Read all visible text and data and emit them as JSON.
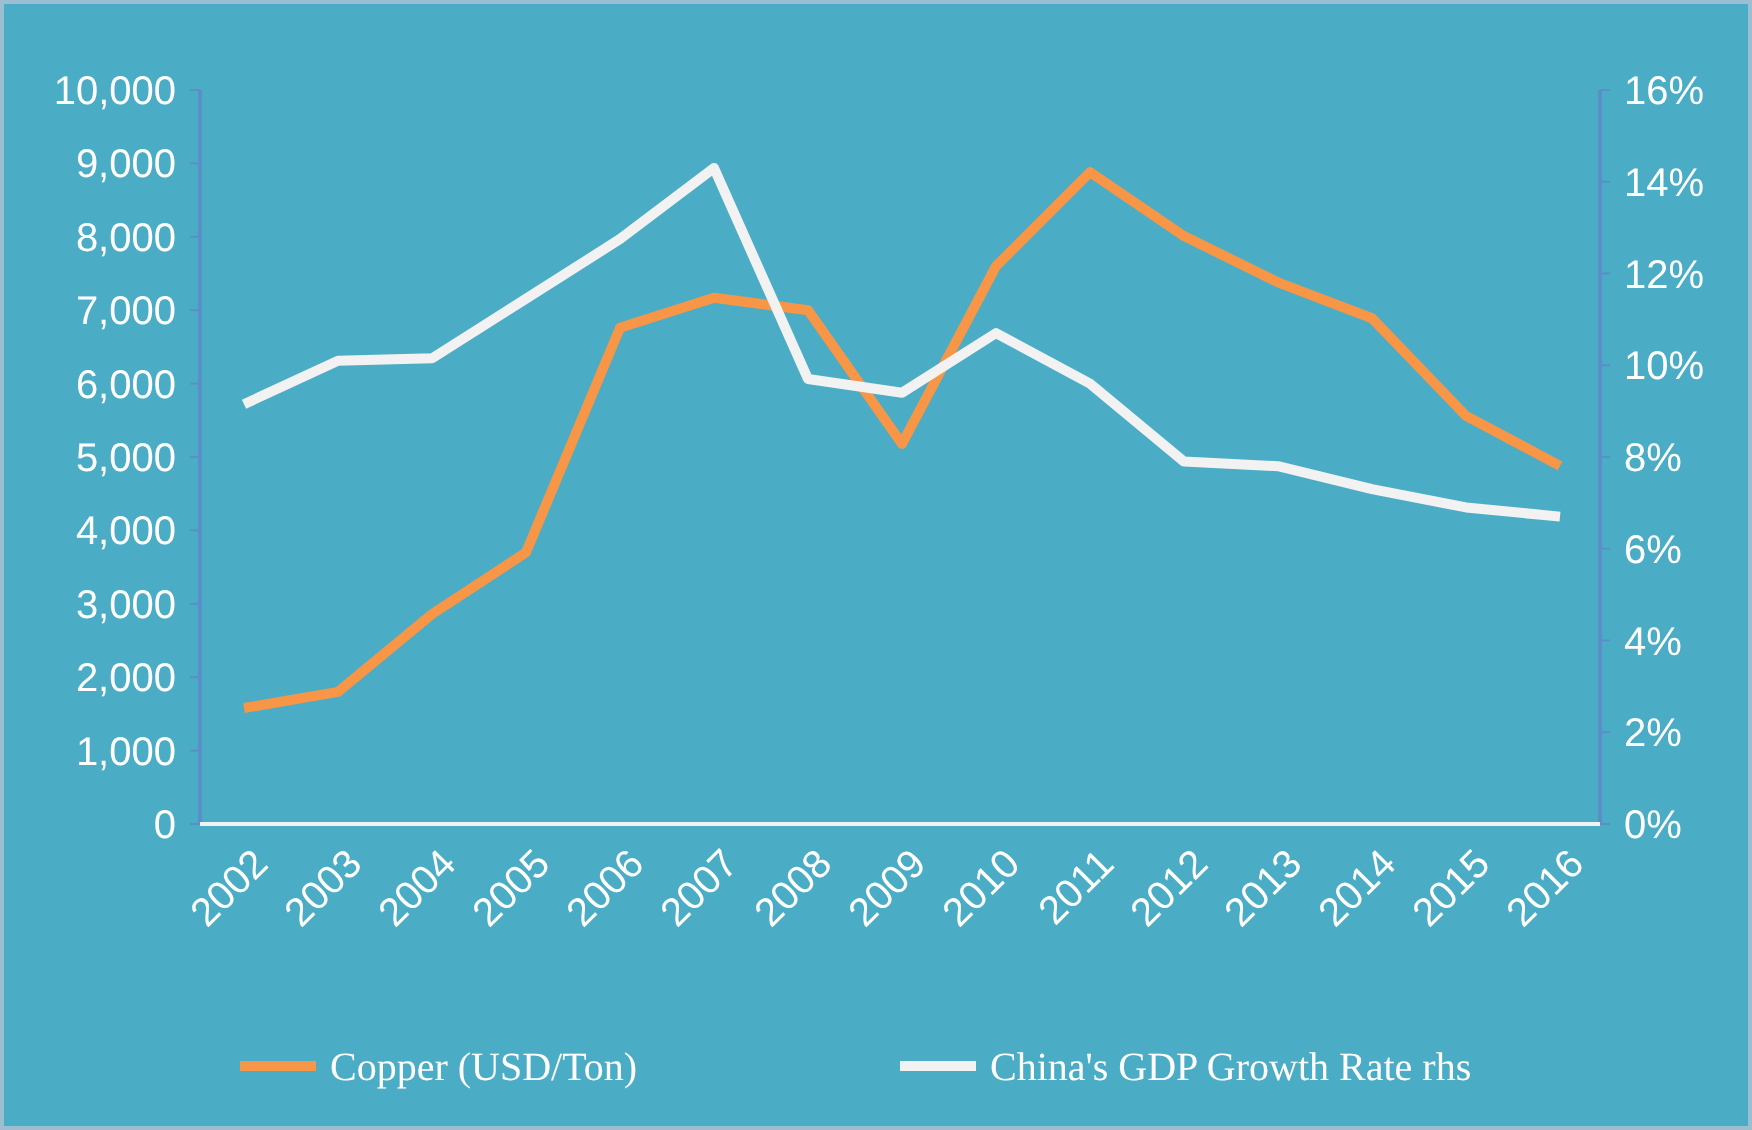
{
  "chart_data": {
    "type": "line",
    "categories": [
      "2002",
      "2003",
      "2004",
      "2005",
      "2006",
      "2007",
      "2008",
      "2009",
      "2010",
      "2011",
      "2012",
      "2013",
      "2014",
      "2015",
      "2016"
    ],
    "series": [
      {
        "name": "Copper (USD/Ton)",
        "color": "#f79646",
        "values": [
          1580,
          1800,
          2860,
          3700,
          6760,
          7170,
          7000,
          5180,
          7600,
          8880,
          8010,
          7380,
          6890,
          5560,
          4880
        ]
      },
      {
        "name": "China's GDP Growth Rate rhs",
        "color": "#f2f2f2",
        "axis": "y2",
        "values": [
          9.15,
          10.1,
          10.15,
          11.45,
          12.75,
          14.3,
          9.7,
          9.4,
          10.7,
          9.6,
          7.9,
          7.8,
          7.3,
          6.9,
          6.7
        ]
      }
    ],
    "ylim": [
      0,
      10000
    ],
    "yticks": [
      {
        "value": 0,
        "label": "0"
      },
      {
        "value": 1000,
        "label": "1,000"
      },
      {
        "value": 2000,
        "label": "2,000"
      },
      {
        "value": 3000,
        "label": "3,000"
      },
      {
        "value": 4000,
        "label": "4,000"
      },
      {
        "value": 5000,
        "label": "5,000"
      },
      {
        "value": 6000,
        "label": "6,000"
      },
      {
        "value": 7000,
        "label": "7,000"
      },
      {
        "value": 8000,
        "label": "8,000"
      },
      {
        "value": 9000,
        "label": "9,000"
      },
      {
        "value": 10000,
        "label": "10,000"
      }
    ],
    "y2lim": [
      0,
      16
    ],
    "y2ticks": [
      {
        "value": 0,
        "label": "0%"
      },
      {
        "value": 2,
        "label": "2%"
      },
      {
        "value": 4,
        "label": "4%"
      },
      {
        "value": 6,
        "label": "6%"
      },
      {
        "value": 8,
        "label": "8%"
      },
      {
        "value": 10,
        "label": "10%"
      },
      {
        "value": 12,
        "label": "12%"
      },
      {
        "value": 14,
        "label": "14%"
      },
      {
        "value": 16,
        "label": "16%"
      }
    ],
    "grid": false,
    "legend": "bottom",
    "marker": "none",
    "line_style": "solid"
  }
}
